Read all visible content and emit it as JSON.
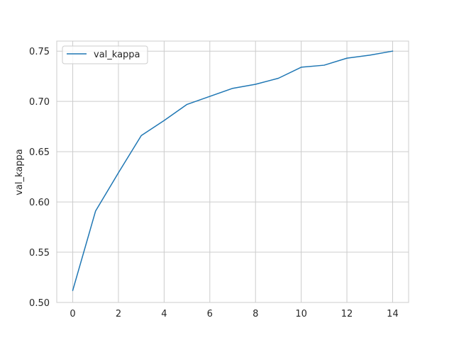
{
  "chart_data": {
    "type": "line",
    "title": "",
    "xlabel": "",
    "ylabel": "val_kappa",
    "xlim": [
      -0.7,
      14.7
    ],
    "ylim": [
      0.5,
      0.76
    ],
    "xticks": [
      0,
      2,
      4,
      6,
      8,
      10,
      12,
      14
    ],
    "yticks": [
      0.5,
      0.55,
      0.6,
      0.65,
      0.7,
      0.75
    ],
    "ytick_labels": [
      "0.50",
      "0.55",
      "0.60",
      "0.65",
      "0.70",
      "0.75"
    ],
    "grid": true,
    "legend_position": "top-left",
    "series": [
      {
        "name": "val_kappa",
        "color": "#1f77b4",
        "x": [
          0,
          1,
          2,
          3,
          4,
          5,
          6,
          7,
          8,
          9,
          10,
          11,
          12,
          13,
          14
        ],
        "y": [
          0.512,
          0.591,
          0.629,
          0.666,
          0.681,
          0.697,
          0.705,
          0.713,
          0.717,
          0.723,
          0.734,
          0.736,
          0.743,
          0.746,
          0.75
        ]
      }
    ]
  }
}
